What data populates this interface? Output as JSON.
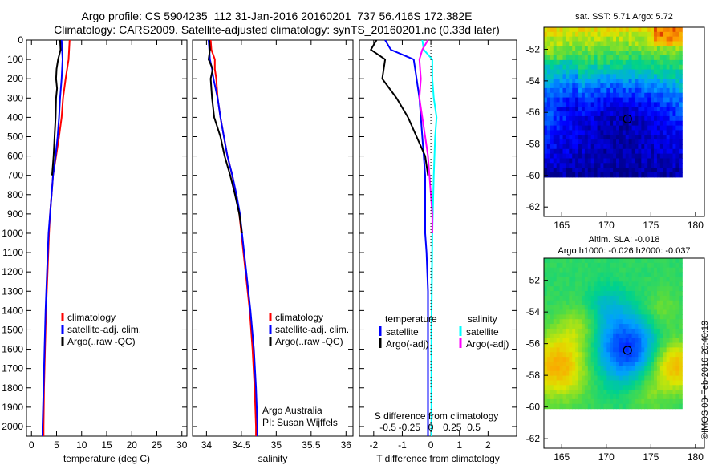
{
  "title_line1": "Argo profile: CS 5904235_112 31-Jan-2016 20160201_737 56.416S 172.382E",
  "title_line2": "Climatology: CARS2009. Satellite-adjusted climatology: synTS_20160201.nc (0.33d later)",
  "copyright": "©IMOS 08-Feb-2016 20:40:19",
  "colors": {
    "red": "#ff0000",
    "blue": "#0000ff",
    "black": "#000000",
    "cyan": "#00ffff",
    "magenta": "#ff00ff"
  },
  "chart_data": [
    {
      "type": "line",
      "name": "temperature-profile",
      "xlabel": "temperature (deg C)",
      "ylabel": "",
      "xlim": [
        -1,
        31
      ],
      "ylim": [
        2050,
        0
      ],
      "xticks": [
        0,
        5,
        10,
        15,
        20,
        25,
        30
      ],
      "yticks": [
        0,
        100,
        200,
        300,
        400,
        500,
        600,
        700,
        800,
        900,
        1000,
        1100,
        1200,
        1300,
        1400,
        1500,
        1600,
        1700,
        1800,
        1900,
        2000
      ],
      "legend": [
        "climatology",
        "satellite-adj. clim.",
        "Argo(..raw -QC)"
      ],
      "series": [
        {
          "color": "red",
          "depth": [
            0,
            100,
            200,
            300,
            400,
            500,
            600,
            700,
            800,
            900,
            1000,
            1200,
            1400,
            1600,
            1800,
            2000,
            2050
          ],
          "values": [
            7.6,
            7.4,
            6.8,
            6.3,
            6.0,
            5.5,
            4.9,
            4.3,
            4.0,
            3.7,
            3.5,
            3.2,
            2.9,
            2.7,
            2.5,
            2.4,
            2.4
          ]
        },
        {
          "color": "blue",
          "depth": [
            0,
            100,
            200,
            300,
            400,
            500,
            600,
            700,
            800,
            900,
            1000,
            1200,
            1400,
            1600,
            1800,
            2000,
            2050
          ],
          "values": [
            6.0,
            6.2,
            6.0,
            5.7,
            5.5,
            5.2,
            4.8,
            4.3,
            4.0,
            3.7,
            3.4,
            3.1,
            2.8,
            2.6,
            2.4,
            2.2,
            2.2
          ]
        },
        {
          "color": "black",
          "depth": [
            0,
            50,
            100,
            150,
            200,
            250,
            300,
            400,
            500,
            600,
            700
          ],
          "values": [
            5.7,
            5.8,
            5.3,
            5.0,
            4.9,
            5.1,
            4.9,
            4.8,
            4.6,
            4.4,
            4.1
          ]
        }
      ]
    },
    {
      "type": "line",
      "name": "salinity-profile",
      "xlabel": "salinity",
      "ylabel": "",
      "xlim": [
        33.8,
        36.1
      ],
      "ylim": [
        2050,
        0
      ],
      "xticks": [
        34,
        34.5,
        35,
        35.5,
        36
      ],
      "legend": [
        "climatology",
        "satellite-adj. clim.",
        "Argo(..raw -QC)"
      ],
      "annotation": [
        "Argo Australia",
        "PI: Susan Wijffels"
      ],
      "series": [
        {
          "color": "red",
          "depth": [
            0,
            50,
            100,
            150,
            200,
            300,
            400,
            500,
            600,
            700,
            800,
            900,
            1000,
            1200,
            1400,
            1600,
            1800,
            2000,
            2050
          ],
          "values": [
            34.06,
            34.07,
            34.12,
            34.12,
            34.14,
            34.16,
            34.2,
            34.25,
            34.3,
            34.37,
            34.42,
            34.47,
            34.5,
            34.56,
            34.62,
            34.66,
            34.69,
            34.71,
            34.71
          ]
        },
        {
          "color": "blue",
          "depth": [
            0,
            50,
            100,
            150,
            200,
            300,
            400,
            500,
            600,
            700,
            800,
            900,
            1000,
            1200,
            1400,
            1600,
            1800,
            2000,
            2050
          ],
          "values": [
            34.03,
            34.04,
            34.05,
            34.08,
            34.1,
            34.16,
            34.2,
            34.25,
            34.3,
            34.37,
            34.43,
            34.48,
            34.51,
            34.57,
            34.63,
            34.68,
            34.71,
            34.73,
            34.73
          ]
        },
        {
          "color": "black",
          "depth": [
            0,
            50,
            100,
            150,
            200,
            300,
            400,
            500,
            600,
            700,
            800,
            900,
            1000
          ],
          "values": [
            34.04,
            34.05,
            34.03,
            34.09,
            34.06,
            34.08,
            34.11,
            34.2,
            34.26,
            34.34,
            34.41,
            34.47,
            34.51
          ]
        }
      ]
    },
    {
      "type": "line",
      "name": "difference-profile",
      "xlabel": "T difference from climatology",
      "xlabel2": "S difference from climatology",
      "xlim": [
        -2.5,
        3
      ],
      "ylim": [
        2050,
        0
      ],
      "xticks": [
        -2,
        -1,
        0,
        1,
        2
      ],
      "xticks_top": [
        {
          "pos": -1.5,
          "label": "-0.5"
        },
        {
          "pos": -0.75,
          "label": "-0.25"
        },
        {
          "pos": 0,
          "label": "0"
        },
        {
          "pos": 0.75,
          "label": "0.25"
        },
        {
          "pos": 1.5,
          "label": "0.5"
        }
      ],
      "legend_left_title": "temperature",
      "legend_right_title": "salinity",
      "legend": [
        "satellite",
        "Argo(-adj)",
        "satellite",
        "Argo(-adj)"
      ],
      "series": [
        {
          "name": "T satellite",
          "color": "blue",
          "depth": [
            0,
            50,
            100,
            200,
            300,
            500,
            700,
            900,
            1000,
            1100,
            1300,
            1600,
            2000,
            2050
          ],
          "values": [
            -1.6,
            -1.4,
            -0.6,
            -0.5,
            -0.4,
            -0.3,
            -0.2,
            -0.2,
            -0.2,
            -0.15,
            -0.1,
            -0.1,
            -0.1,
            -0.1
          ]
        },
        {
          "name": "T Argo(-adj)",
          "color": "black",
          "depth": [
            0,
            50,
            100,
            200,
            300,
            400,
            500,
            600,
            700
          ],
          "values": [
            -1.9,
            -2.1,
            -1.6,
            -1.7,
            -1.2,
            -0.8,
            -0.5,
            -0.2,
            -0.1
          ]
        },
        {
          "name": "S satellite",
          "color": "cyan",
          "depth": [
            0,
            50,
            100,
            200,
            300,
            400,
            500,
            700,
            1000,
            1500,
            2000,
            2050
          ],
          "values": [
            -0.3,
            -0.25,
            0.05,
            0.05,
            0.1,
            0.2,
            0.15,
            0.1,
            0.05,
            0.02,
            0.02,
            0.02
          ]
        },
        {
          "name": "S Argo(-adj)",
          "color": "magenta",
          "depth": [
            0,
            50,
            100,
            200,
            300,
            400,
            500,
            600,
            700,
            800,
            900,
            1000
          ],
          "values": [
            -0.1,
            -0.3,
            -0.4,
            -0.35,
            -0.4,
            -0.3,
            -0.2,
            -0.1,
            -0.05,
            0,
            0.05,
            0.05
          ]
        }
      ]
    },
    {
      "type": "heatmap",
      "name": "sst-map",
      "title": "sat. SST: 5.71  Argo: 5.72",
      "xlim": [
        163,
        181
      ],
      "ylim": [
        -62.6,
        -50.6
      ],
      "data_extent": {
        "lon": [
          163,
          178.5
        ],
        "lat": [
          -60.1,
          -50.6
        ]
      },
      "xticks": [
        165,
        170,
        175,
        180
      ],
      "yticks": [
        -52,
        -54,
        -56,
        -58,
        -60,
        -62
      ],
      "marker": {
        "lon": 172.382,
        "lat": -56.416
      }
    },
    {
      "type": "heatmap",
      "name": "sla-map",
      "title": "Altim. SLA: -0.018",
      "title2": "Argo h1000: -0.026 h2000: -0.037",
      "xlim": [
        163,
        181
      ],
      "ylim": [
        -62.6,
        -50.6
      ],
      "data_extent": {
        "lon": [
          163,
          178.5
        ],
        "lat": [
          -60.1,
          -50.6
        ]
      },
      "xticks": [
        165,
        170,
        175,
        180
      ],
      "yticks": [
        -52,
        -54,
        -56,
        -58,
        -60,
        -62
      ],
      "marker": {
        "lon": 172.382,
        "lat": -56.416
      }
    }
  ]
}
